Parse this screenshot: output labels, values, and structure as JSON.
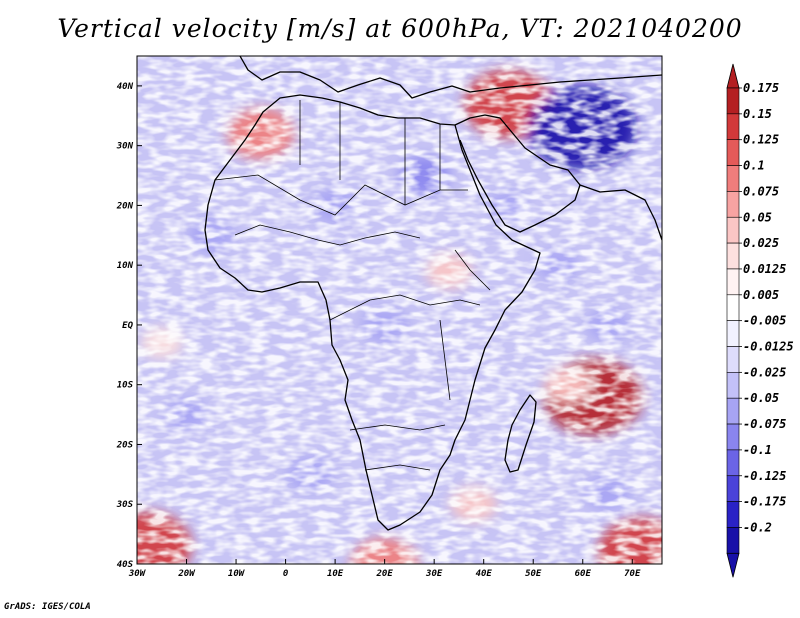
{
  "title": "Vertical velocity [m/s] at 600hPa, VT: 2021040200",
  "credit": "GrADS: IGES/COLA",
  "map": {
    "variable": "Vertical velocity",
    "units": "m/s",
    "level": "600hPa",
    "valid_time": "2021040200",
    "lon_range": [
      -30,
      76
    ],
    "lat_range": [
      -40,
      45
    ],
    "lat_ticks": [
      {
        "value": 40,
        "label": "40N"
      },
      {
        "value": 30,
        "label": "30N"
      },
      {
        "value": 20,
        "label": "20N"
      },
      {
        "value": 10,
        "label": "10N"
      },
      {
        "value": 0,
        "label": "EQ"
      },
      {
        "value": -10,
        "label": "10S"
      },
      {
        "value": -20,
        "label": "20S"
      },
      {
        "value": -30,
        "label": "30S"
      },
      {
        "value": -40,
        "label": "40S"
      }
    ],
    "lon_ticks": [
      {
        "value": -30,
        "label": "30W"
      },
      {
        "value": -20,
        "label": "20W"
      },
      {
        "value": -10,
        "label": "10W"
      },
      {
        "value": 0,
        "label": "0"
      },
      {
        "value": 10,
        "label": "10E"
      },
      {
        "value": 20,
        "label": "20E"
      },
      {
        "value": 30,
        "label": "30E"
      },
      {
        "value": 40,
        "label": "40E"
      },
      {
        "value": 50,
        "label": "50E"
      },
      {
        "value": 60,
        "label": "60E"
      },
      {
        "value": 70,
        "label": "70E"
      }
    ],
    "hotspots": [
      {
        "lon": 45,
        "lat": 37,
        "value": 0.15
      },
      {
        "lon": 60,
        "lat": 33,
        "value": -0.2
      },
      {
        "lon": 62,
        "lat": -12,
        "value": 0.175
      },
      {
        "lon": -28,
        "lat": -37,
        "value": 0.15
      },
      {
        "lon": 72,
        "lat": -38,
        "value": 0.15
      },
      {
        "lon": -5,
        "lat": 32,
        "value": 0.1
      },
      {
        "lon": 33,
        "lat": 9,
        "value": 0.05
      },
      {
        "lon": 20,
        "lat": -40,
        "value": 0.1
      },
      {
        "lon": 57,
        "lat": -10,
        "value": 0.05
      },
      {
        "lon": 38,
        "lat": -30,
        "value": 0.05
      },
      {
        "lon": -25,
        "lat": -3,
        "value": 0.04
      },
      {
        "lon": 28,
        "lat": 25,
        "value": -0.06
      },
      {
        "lon": 10,
        "lat": 20,
        "value": -0.05
      },
      {
        "lon": -15,
        "lat": 15,
        "value": -0.05
      },
      {
        "lon": 5,
        "lat": -25,
        "value": -0.05
      },
      {
        "lon": 20,
        "lat": 0,
        "value": -0.05
      },
      {
        "lon": -20,
        "lat": -15,
        "value": -0.04
      },
      {
        "lon": 55,
        "lat": 10,
        "value": -0.04
      },
      {
        "lon": 65,
        "lat": 0,
        "value": -0.04
      },
      {
        "lon": 65,
        "lat": -28,
        "value": -0.05
      },
      {
        "lon": 45,
        "lat": 20,
        "value": -0.03
      }
    ]
  },
  "colorbar": {
    "labels": [
      "0.175",
      "0.15",
      "0.125",
      "0.1",
      "0.075",
      "0.05",
      "0.025",
      "0.0125",
      "0.005",
      "-0.005",
      "-0.0125",
      "-0.025",
      "-0.05",
      "-0.075",
      "-0.1",
      "-0.125",
      "-0.175",
      "-0.2"
    ],
    "colors": [
      "#b41f22",
      "#d2393a",
      "#e45a59",
      "#f07d7c",
      "#f7a3a2",
      "#fbc6c5",
      "#fde0df",
      "#fff3f3",
      "#ffffff",
      "#f2f2ff",
      "#dedcfc",
      "#c3c1f8",
      "#a7a4f4",
      "#8a85ef",
      "#6b64e6",
      "#4b43d9",
      "#2a22c6",
      "#1810a8"
    ],
    "top_color": "#b41f22",
    "bottom_color": "#1810a8"
  }
}
